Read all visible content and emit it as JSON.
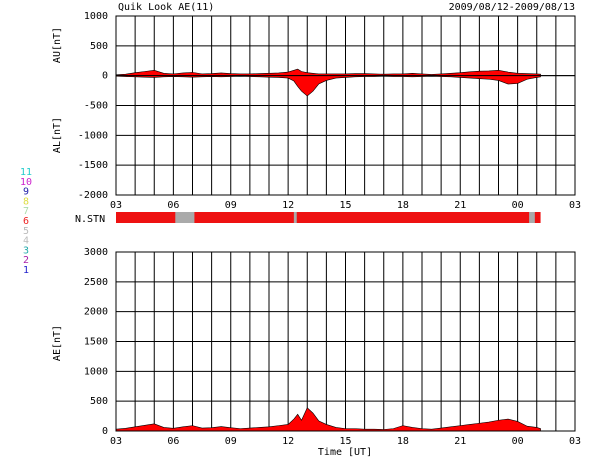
{
  "title": "Quik Look AE(11)",
  "date_range": "2009/08/12-2009/08/13",
  "nstn_label": "N.STN",
  "station_legend": [
    {
      "label": "11",
      "color": "#22cccc"
    },
    {
      "label": "10",
      "color": "#cc22cc"
    },
    {
      "label": "9",
      "color": "#2222aa"
    },
    {
      "label": "8",
      "color": "#dddd44"
    },
    {
      "label": "7",
      "color": "#aaddaa"
    },
    {
      "label": "6",
      "color": "#ee2222"
    },
    {
      "label": "5",
      "color": "#bbbbbb"
    },
    {
      "label": "4",
      "color": "#bbbbbb"
    },
    {
      "label": "3",
      "color": "#22aaaa"
    },
    {
      "label": "2",
      "color": "#aa22aa"
    },
    {
      "label": "1",
      "color": "#2222cc"
    }
  ],
  "chart_data": [
    {
      "type": "area",
      "ylabel_top": "AU[nT]",
      "ylabel_bottom": "AL[nT]",
      "ylim": [
        -2000,
        1000
      ],
      "yticks": [
        1000,
        500,
        0,
        -500,
        -1000,
        -1500,
        -2000
      ],
      "xlim": [
        3,
        27
      ],
      "xticks": [
        "03",
        "06",
        "09",
        "12",
        "15",
        "18",
        "21",
        "00",
        "03"
      ],
      "fill_color": "#ff0000",
      "series": [
        {
          "x": [
            3.0,
            3.5,
            4.0,
            4.5,
            5.0,
            5.5,
            6.0,
            6.5,
            7.0,
            7.5,
            8.0,
            8.5,
            9.0,
            9.5,
            10.0,
            10.5,
            11.0,
            11.5,
            12.0,
            12.3,
            12.5,
            12.7,
            13.0,
            13.3,
            13.6,
            14.0,
            14.5,
            15.0,
            15.5,
            16.0,
            16.5,
            17.0,
            17.5,
            18.0,
            18.5,
            19.0,
            19.5,
            20.0,
            20.5,
            21.0,
            21.5,
            22.0,
            22.5,
            23.0,
            23.5,
            24.0,
            24.5,
            25.0,
            25.2
          ],
          "au": [
            15,
            25,
            50,
            70,
            90,
            40,
            30,
            45,
            55,
            30,
            35,
            45,
            35,
            30,
            30,
            35,
            40,
            45,
            60,
            90,
            110,
            70,
            50,
            40,
            30,
            30,
            30,
            30,
            35,
            35,
            30,
            25,
            30,
            30,
            40,
            30,
            20,
            30,
            40,
            50,
            65,
            75,
            80,
            90,
            60,
            40,
            35,
            30,
            25
          ],
          "al": [
            -10,
            -15,
            -20,
            -25,
            -30,
            -20,
            -15,
            -20,
            -25,
            -20,
            -15,
            -20,
            -15,
            -10,
            -15,
            -20,
            -25,
            -30,
            -40,
            -90,
            -180,
            -260,
            -340,
            -260,
            -140,
            -80,
            -40,
            -30,
            -20,
            -15,
            -15,
            -10,
            -15,
            -15,
            -20,
            -15,
            -10,
            -15,
            -20,
            -30,
            -40,
            -50,
            -60,
            -80,
            -140,
            -130,
            -60,
            -30,
            -20
          ]
        }
      ]
    },
    {
      "type": "area",
      "ylabel": "AE[nT]",
      "xlabel": "Time [UT]",
      "ylim": [
        0,
        3000
      ],
      "yticks": [
        3000,
        2500,
        2000,
        1500,
        1000,
        500,
        0
      ],
      "xlim": [
        3,
        27
      ],
      "xticks": [
        "03",
        "06",
        "09",
        "12",
        "15",
        "18",
        "21",
        "00",
        "03"
      ],
      "fill_color": "#ff0000",
      "series": [
        {
          "x": [
            3.0,
            3.5,
            4.0,
            4.5,
            5.0,
            5.5,
            6.0,
            6.5,
            7.0,
            7.5,
            8.0,
            8.5,
            9.0,
            9.5,
            10.0,
            10.5,
            11.0,
            11.5,
            12.0,
            12.3,
            12.5,
            12.7,
            13.0,
            13.3,
            13.6,
            14.0,
            14.5,
            15.0,
            15.5,
            16.0,
            16.5,
            17.0,
            17.5,
            18.0,
            18.5,
            19.0,
            19.5,
            20.0,
            20.5,
            21.0,
            21.5,
            22.0,
            22.5,
            23.0,
            23.5,
            24.0,
            24.5,
            25.0,
            25.2
          ],
          "ae": [
            30,
            45,
            70,
            95,
            120,
            60,
            45,
            70,
            90,
            50,
            55,
            75,
            55,
            40,
            50,
            60,
            70,
            90,
            110,
            200,
            280,
            180,
            390,
            300,
            170,
            110,
            60,
            40,
            40,
            30,
            30,
            25,
            40,
            90,
            60,
            40,
            30,
            50,
            70,
            90,
            110,
            130,
            150,
            180,
            200,
            160,
            80,
            60,
            40
          ]
        }
      ]
    }
  ],
  "nstn_bar": {
    "xlim": [
      3,
      25.2
    ],
    "gaps": [
      6.1,
      7.1,
      12.3,
      12.45,
      24.6,
      24.9
    ],
    "bar_color": "#ee1111",
    "gap_color": "#aaaaaa"
  }
}
